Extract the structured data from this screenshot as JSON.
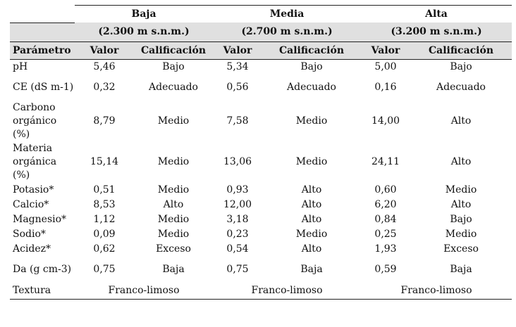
{
  "zones": [
    {
      "name": "Baja",
      "altitude": "(2.300 m s.n.m.)"
    },
    {
      "name": "Media",
      "altitude": "(2.700 m s.n.m.)"
    },
    {
      "name": "Alta",
      "altitude": "(3.200 m s.n.m.)"
    }
  ],
  "headers": {
    "parameter": "Parámetro",
    "value": "Valor",
    "rating": "Calificación"
  },
  "rows": [
    {
      "param": "pH",
      "baja_v": "5,46",
      "baja_c": "Bajo",
      "media_v": "5,34",
      "media_c": "Bajo",
      "alta_v": "5,00",
      "alta_c": "Bajo"
    },
    {
      "param": "CE (dS m-1)",
      "baja_v": "0,32",
      "baja_c": "Adecuado",
      "media_v": "0,56",
      "media_c": "Adecuado",
      "alta_v": "0,16",
      "alta_c": "Adecuado"
    },
    {
      "param": "Carbono orgánico (%)",
      "baja_v": "8,79",
      "baja_c": "Medio",
      "media_v": "7,58",
      "media_c": "Medio",
      "alta_v": "14,00",
      "alta_c": "Alto"
    },
    {
      "param": "Materia orgánica (%)",
      "baja_v": "15,14",
      "baja_c": "Medio",
      "media_v": "13,06",
      "media_c": "Medio",
      "alta_v": "24,11",
      "alta_c": "Alto"
    },
    {
      "param": "Potasio*",
      "baja_v": "0,51",
      "baja_c": "Medio",
      "media_v": "0,93",
      "media_c": "Alto",
      "alta_v": "0,60",
      "alta_c": "Medio"
    },
    {
      "param": "Calcio*",
      "baja_v": "8,53",
      "baja_c": "Alto",
      "media_v": "12,00",
      "media_c": "Alto",
      "alta_v": "6,20",
      "alta_c": "Alto"
    },
    {
      "param": "Magnesio*",
      "baja_v": "1,12",
      "baja_c": "Medio",
      "media_v": "3,18",
      "media_c": "Alto",
      "alta_v": "0,84",
      "alta_c": "Bajo"
    },
    {
      "param": "Sodio*",
      "baja_v": "0,09",
      "baja_c": "Medio",
      "media_v": "0,23",
      "media_c": "Medio",
      "alta_v": "0,25",
      "alta_c": "Medio"
    },
    {
      "param": "Acidez*",
      "baja_v": "0,62",
      "baja_c": "Exceso",
      "media_v": "0,54",
      "media_c": "Alto",
      "alta_v": "1,93",
      "alta_c": "Exceso"
    },
    {
      "param": "Da (g cm-3)",
      "baja_v": "0,75",
      "baja_c": "Baja",
      "media_v": "0,75",
      "media_c": "Baja",
      "alta_v": "0,59",
      "alta_c": "Baja"
    }
  ],
  "texture": {
    "param": "Textura",
    "baja": "Franco-limoso",
    "media": "Franco-limoso",
    "alta": "Franco-limoso"
  }
}
